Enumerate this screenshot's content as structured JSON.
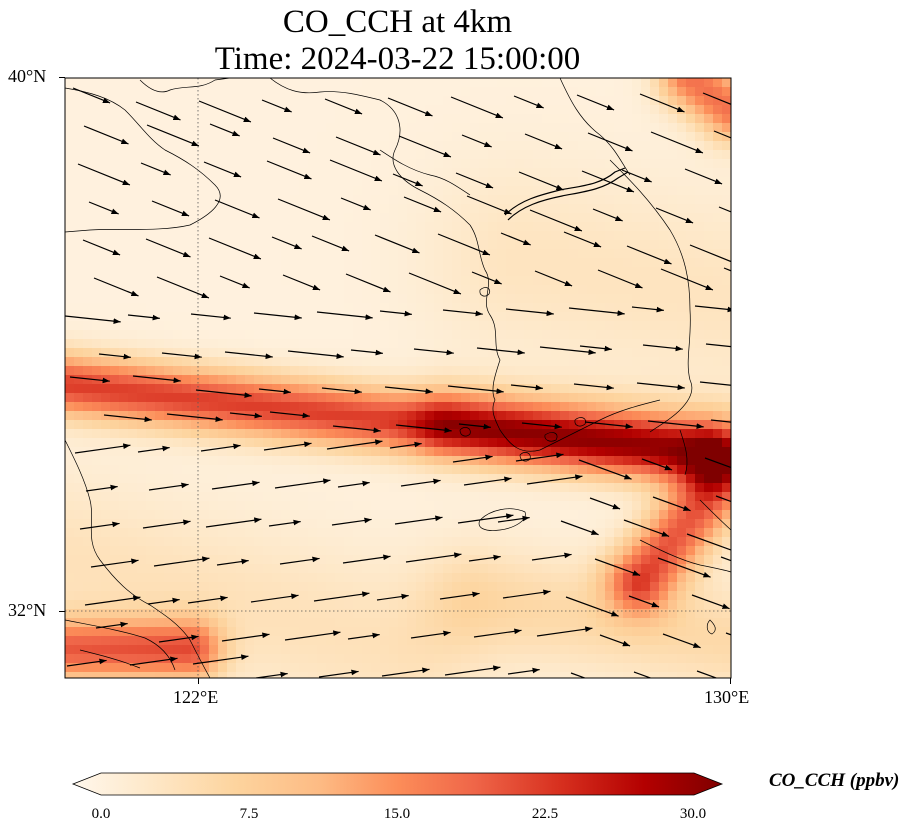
{
  "title_line1": "CO_CCH at 4km",
  "title_line2": "Time: 2024-03-22 15:00:00",
  "lat_labels": [
    "40°N",
    "32°N"
  ],
  "lon_labels": [
    "122°E",
    "130°E"
  ],
  "colorbar": {
    "label": "CO_CCH (ppbv)",
    "ticks": [
      "0.0",
      "7.5",
      "15.0",
      "22.5",
      "30.0"
    ],
    "min": 0,
    "max": 30,
    "colormap": "OrRd",
    "extend": "both"
  },
  "map_extent": {
    "lon": [
      120,
      130
    ],
    "lat": [
      31,
      40
    ]
  },
  "colors": {
    "low": "#fff7ec",
    "mid": "#fc8d59",
    "high": "#7f0000"
  }
}
